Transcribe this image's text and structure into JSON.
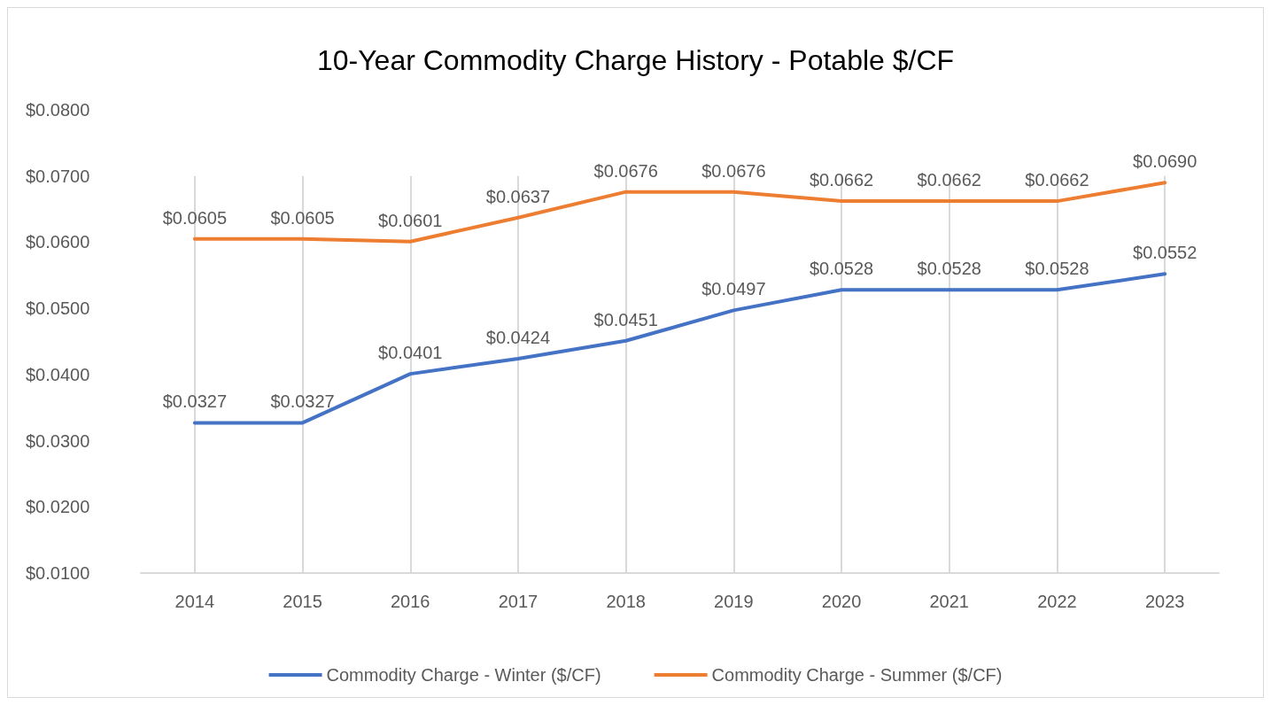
{
  "chart_data": {
    "type": "line",
    "title": "10-Year Commodity Charge History - Potable $/CF",
    "categories": [
      "2014",
      "2015",
      "2016",
      "2017",
      "2018",
      "2019",
      "2020",
      "2021",
      "2022",
      "2023"
    ],
    "series": [
      {
        "name": "Commodity Charge - Winter ($/CF)",
        "color": "#4472c4",
        "values": [
          0.0327,
          0.0327,
          0.0401,
          0.0424,
          0.0451,
          0.0497,
          0.0528,
          0.0528,
          0.0528,
          0.0552
        ],
        "value_labels": [
          "$0.0327",
          "$0.0327",
          "$0.0401",
          "$0.0424",
          "$0.0451",
          "$0.0497",
          "$0.0528",
          "$0.0528",
          "$0.0528",
          "$0.0552"
        ]
      },
      {
        "name": "Commodity Charge - Summer ($/CF)",
        "color": "#ed7d31",
        "values": [
          0.0605,
          0.0605,
          0.0601,
          0.0637,
          0.0676,
          0.0676,
          0.0662,
          0.0662,
          0.0662,
          0.069
        ],
        "value_labels": [
          "$0.0605",
          "$0.0605",
          "$0.0601",
          "$0.0637",
          "$0.0676",
          "$0.0676",
          "$0.0662",
          "$0.0662",
          "$0.0662",
          "$0.0690"
        ]
      }
    ],
    "ylim": [
      0.01,
      0.08
    ],
    "yticks": [
      {
        "value": 0.01,
        "label": "$0.0100"
      },
      {
        "value": 0.02,
        "label": "$0.0200"
      },
      {
        "value": 0.03,
        "label": "$0.0300"
      },
      {
        "value": 0.04,
        "label": "$0.0400"
      },
      {
        "value": 0.05,
        "label": "$0.0500"
      },
      {
        "value": 0.06,
        "label": "$0.0600"
      },
      {
        "value": 0.07,
        "label": "$0.0700"
      },
      {
        "value": 0.08,
        "label": "$0.0800"
      }
    ],
    "grid": "x",
    "legend": "bottom",
    "marker": "none",
    "line_style": "solid"
  }
}
